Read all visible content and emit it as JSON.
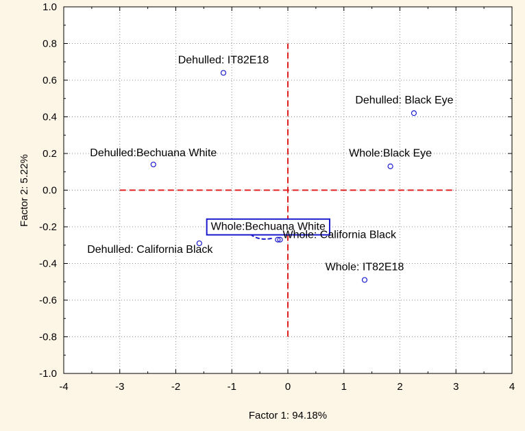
{
  "chart_data": {
    "type": "scatter",
    "title": "",
    "xlabel": "Factor 1: 94.18%",
    "ylabel": "Factor 2:  5.22%",
    "xlim": [
      -4,
      4
    ],
    "ylim": [
      -1.0,
      1.0
    ],
    "x_ticks": [
      "-4",
      "-3",
      "-2",
      "-1",
      "0",
      "1",
      "2",
      "3",
      "4"
    ],
    "y_ticks": [
      "-1.0",
      "-0.8",
      "-0.6",
      "-0.4",
      "-0.2",
      "0.0",
      "0.2",
      "0.4",
      "0.6",
      "0.8",
      "1.0"
    ],
    "grid": true,
    "points": [
      {
        "label": "Dehulled: IT82E18",
        "x": -1.15,
        "y": 0.64
      },
      {
        "label": "Dehulled: Black Eye",
        "x": 2.25,
        "y": 0.42
      },
      {
        "label": "Dehulled:Bechuana White",
        "x": -2.4,
        "y": 0.14
      },
      {
        "label": "Whole:Black Eye",
        "x": 1.83,
        "y": 0.13
      },
      {
        "label": "Whole:Bechuana White",
        "x": -0.18,
        "y": -0.27
      },
      {
        "label": "Dehulled: California Black",
        "x": -1.58,
        "y": -0.29
      },
      {
        "label": "Whole: California Black",
        "x": -0.14,
        "y": -0.27
      },
      {
        "label": "Whole: IT82E18",
        "x": 1.37,
        "y": -0.49
      }
    ],
    "reference_lines": {
      "horizontal": {
        "y": 0,
        "x_from": -3,
        "x_to": 3
      },
      "vertical": {
        "x": 0,
        "y_from": -0.8,
        "y_to": 0.8
      }
    },
    "colors": {
      "background": "#fdf5e6",
      "plot_background": "#ffffff",
      "points": "#1a1acc",
      "reference": "#e02020",
      "grid": "#8c8c8c",
      "highlight_box": "#1a1acc"
    }
  }
}
